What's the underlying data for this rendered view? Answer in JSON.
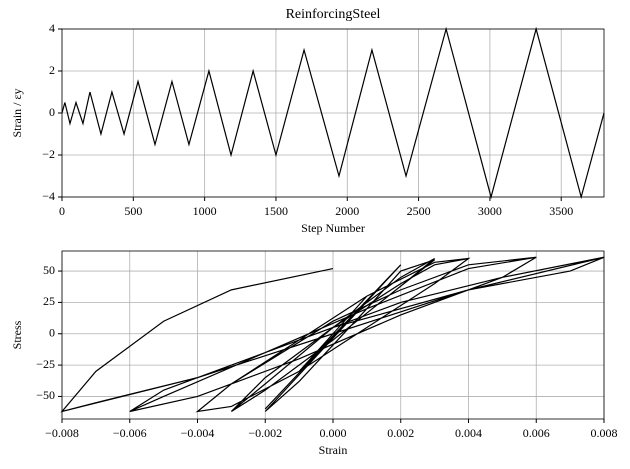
{
  "chart_data": [
    {
      "type": "line",
      "title": "ReinforcingSteel",
      "x_label": "Step Number",
      "y_label": "Strain / εy",
      "color": "#000000",
      "grid": true,
      "x": [
        0,
        20,
        56,
        98,
        147,
        196,
        273,
        350,
        435,
        533,
        652,
        771,
        890,
        1030,
        1185,
        1340,
        1500,
        1697,
        1942,
        2173,
        2412,
        2693,
        3008,
        3324,
        3640,
        3800
      ],
      "values": [
        0,
        0.5,
        -0.5,
        0.5,
        -0.5,
        1,
        -1,
        1,
        -1,
        1.5,
        -1.5,
        1.5,
        -1.5,
        2,
        -2,
        2,
        -2,
        3,
        -3,
        3,
        -3,
        4,
        -4,
        4,
        -4,
        0
      ],
      "xlim": [
        0,
        3800
      ],
      "xticks": [
        0,
        500,
        1000,
        1500,
        2000,
        2500,
        3000,
        3500
      ],
      "ylim": [
        -4,
        4
      ],
      "yticks": [
        {
          "value": -4,
          "label": "−4"
        },
        {
          "value": -2,
          "label": "−2"
        },
        0,
        2,
        4
      ]
    },
    {
      "type": "line",
      "x_label": "Strain",
      "y_label": "Stress",
      "color": "#000000",
      "grid": true,
      "x": [
        0,
        0.001,
        -0.001,
        0.001,
        -0.001,
        0.002,
        -0.002,
        0.002,
        -0.002,
        -0.001,
        0.001,
        0.002,
        0.003,
        0.002,
        0,
        -0.002,
        -0.003,
        -0.002,
        0,
        0.002,
        0.003,
        0.002,
        0,
        -0.002,
        -0.003,
        -0.002,
        0,
        0.002,
        0.003,
        0.004,
        0.003,
        0.001,
        -0.001,
        -0.003,
        -0.004,
        -0.003,
        -0.001,
        0.001,
        0.003,
        0.004,
        0.003,
        0.001,
        -0.001,
        -0.003,
        -0.004,
        -0.003,
        0,
        0.002,
        0.004,
        0.006,
        0.005,
        0.002,
        -0.001,
        -0.004,
        -0.006,
        -0.005,
        -0.002,
        0.001,
        0.004,
        0.006,
        0.005,
        0.002,
        -0.001,
        -0.004,
        -0.006,
        -0.005,
        -0.002,
        0.002,
        0.005,
        0.008,
        0.007,
        0.004,
        0,
        -0.004,
        -0.008,
        -0.007,
        -0.004,
        0,
        0.004,
        0.008,
        0.007,
        0.004,
        0,
        -0.004,
        -0.008,
        -0.007,
        -0.005,
        -0.003,
        0
      ],
      "values": [
        0,
        30,
        -30,
        30,
        -30,
        55,
        -60,
        55,
        -62,
        -38,
        20,
        50,
        59,
        38,
        -5,
        -45,
        -62,
        -40,
        5,
        45,
        60,
        38,
        -5,
        -45,
        -62,
        -35,
        5,
        40,
        55,
        60,
        40,
        5,
        -30,
        -58,
        -62,
        -40,
        -5,
        30,
        57,
        60,
        40,
        5,
        -30,
        -58,
        -62,
        -40,
        10,
        35,
        55,
        61,
        45,
        15,
        -20,
        -50,
        -62,
        -45,
        -15,
        20,
        52,
        61,
        45,
        15,
        -20,
        -50,
        -62,
        -50,
        -15,
        25,
        45,
        61,
        50,
        35,
        5,
        -35,
        -62,
        -55,
        -35,
        0,
        35,
        61,
        50,
        35,
        5,
        -35,
        -62,
        -30,
        10,
        35,
        52
      ],
      "xlim": [
        -0.008,
        0.008
      ],
      "xticks": [
        {
          "value": -0.008,
          "label": "−0.008"
        },
        {
          "value": -0.006,
          "label": "−0.006"
        },
        {
          "value": -0.004,
          "label": "−0.004"
        },
        {
          "value": -0.002,
          "label": "−0.002"
        },
        {
          "value": 0,
          "label": "0.000"
        },
        {
          "value": 0.002,
          "label": "0.002"
        },
        {
          "value": 0.004,
          "label": "0.004"
        },
        {
          "value": 0.006,
          "label": "0.006"
        },
        {
          "value": 0.008,
          "label": "0.008"
        }
      ],
      "ylim": [
        -68,
        66
      ],
      "yticks": [
        {
          "value": -50,
          "label": "−50"
        },
        {
          "value": -25,
          "label": "−25"
        },
        0,
        25,
        50
      ]
    }
  ]
}
